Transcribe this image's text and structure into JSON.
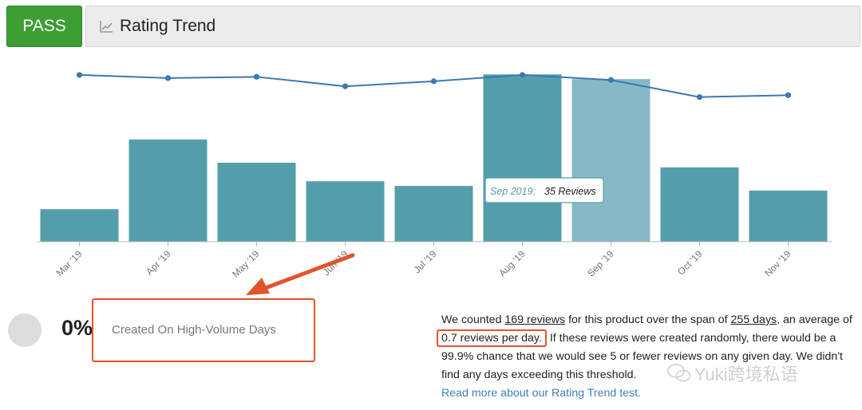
{
  "header": {
    "status_label": "PASS",
    "title": "Rating Trend",
    "title_icon": "line-chart-icon"
  },
  "chart_data": {
    "type": "bar",
    "categories": [
      "Mar '19",
      "Apr '19",
      "May '19",
      "Jun '19",
      "Jul '19",
      "Aug '19",
      "Sep '19",
      "Oct '19",
      "Nov '19"
    ],
    "series": [
      {
        "kind": "bar",
        "values": [
          7,
          22,
          17,
          13,
          12,
          36,
          35,
          16,
          11
        ]
      },
      {
        "kind": "line",
        "values": [
          4.9,
          4.85,
          4.87,
          4.72,
          4.8,
          4.9,
          4.82,
          4.55,
          4.58
        ]
      }
    ],
    "highlighted_index": 6,
    "tooltip": {
      "label": "Sep 2019:",
      "value": "35 Reviews"
    },
    "bar_color": "#549eac",
    "highlight_color": "#86b9c5",
    "line_color": "#3b78b4"
  },
  "metric": {
    "percent": "0%",
    "label": "Created On High-Volume Days"
  },
  "description": {
    "part1": "We counted ",
    "reviews_count": "169 reviews",
    "part2": " for this product over the span of ",
    "span": "255 days",
    "part3": ", an average of ",
    "average": "0.7 reviews per day.",
    "part4": " If these reviews were created randomly, there would be a 99.9% chance that we would see 5 or fewer reviews on any given day. We didn't find any days exceeding this threshold.",
    "read_more": "Read more about our Rating Trend test."
  },
  "watermark": {
    "text": "Yuki跨境私语",
    "icon": "wechat-icon"
  },
  "colors": {
    "pass": "#3c9e33",
    "annotation": "#e0542b",
    "link": "#3f7fb5"
  }
}
